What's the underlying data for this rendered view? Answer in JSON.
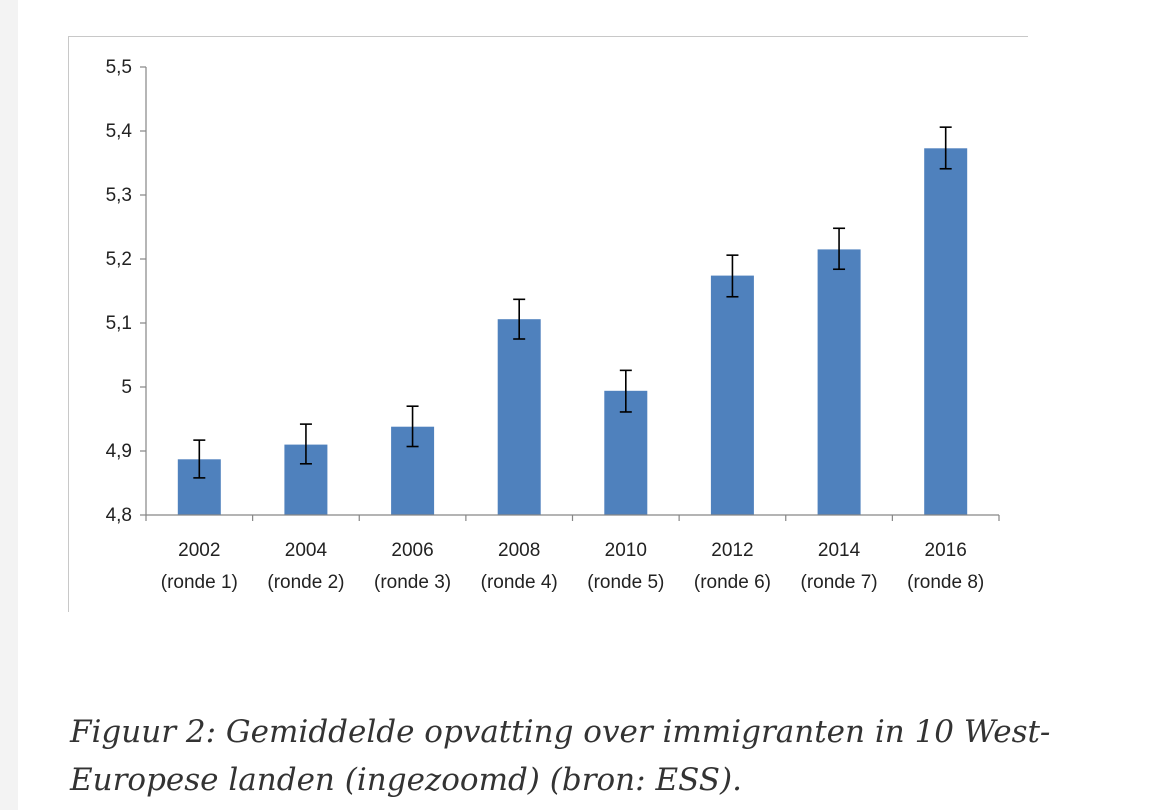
{
  "caption": "Figuur 2: Gemiddelde opvatting over immigranten in 10 West-Europese landen (ingezoomd) (bron: ESS).",
  "chart_data": {
    "type": "bar",
    "title": "",
    "xlabel": "",
    "ylabel": "",
    "categories": [
      {
        "year": "2002",
        "round": "(ronde 1)"
      },
      {
        "year": "2004",
        "round": "(ronde 2)"
      },
      {
        "year": "2006",
        "round": "(ronde 3)"
      },
      {
        "year": "2008",
        "round": "(ronde 4)"
      },
      {
        "year": "2010",
        "round": "(ronde 5)"
      },
      {
        "year": "2012",
        "round": "(ronde 6)"
      },
      {
        "year": "2014",
        "round": "(ronde 7)"
      },
      {
        "year": "2016",
        "round": "(ronde 8)"
      }
    ],
    "values": [
      4.887,
      4.91,
      4.938,
      5.106,
      4.994,
      5.174,
      5.215,
      5.373
    ],
    "error_low": [
      4.858,
      4.88,
      4.907,
      5.075,
      4.961,
      5.141,
      5.184,
      5.341
    ],
    "error_high": [
      4.917,
      4.942,
      4.97,
      5.137,
      5.026,
      5.206,
      5.248,
      5.406
    ],
    "ylim": [
      4.8,
      5.5
    ],
    "yticks": [
      {
        "value": 4.8,
        "label": "4,8"
      },
      {
        "value": 4.9,
        "label": "4,9"
      },
      {
        "value": 5.0,
        "label": "5"
      },
      {
        "value": 5.1,
        "label": "5,1"
      },
      {
        "value": 5.2,
        "label": "5,2"
      },
      {
        "value": 5.3,
        "label": "5,3"
      },
      {
        "value": 5.4,
        "label": "5,4"
      },
      {
        "value": 5.5,
        "label": "5,5"
      }
    ],
    "grid": false,
    "legend": "none",
    "bar_color": "#4f81bd",
    "error_bar_color": "#000000",
    "axis_color": "#868686"
  }
}
